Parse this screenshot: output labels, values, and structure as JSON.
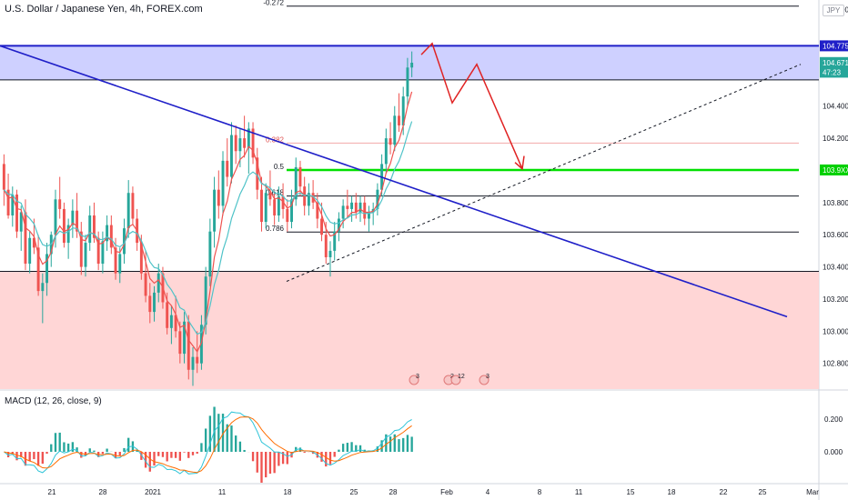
{
  "header": {
    "title": "U.S. Dollar / Japanese Yen, 4h, FOREX.com",
    "currency": "JPY"
  },
  "macd": {
    "title": "MACD (12, 26, close, 9)"
  },
  "colors": {
    "up": "#26a69a",
    "down": "#ef5350",
    "resistance_zone": "#c5c8ff",
    "support_zone": "#ffd2d2",
    "trendline": "#1f1fc8",
    "projection": "#e02222",
    "green_level": "#00e000",
    "fib_line": "#131722",
    "fib_red_line": "#f2a8a8",
    "ma_fast": "#ef5350",
    "ma_slow": "#4fc3c8"
  },
  "chart_data": {
    "type": "candlestick",
    "symbol": "USDJPY",
    "timeframe": "4h",
    "ylim": [
      102.64,
      105.06
    ],
    "y_ticks": [
      "105.000",
      "104.400",
      "104.200",
      "103.800",
      "103.600",
      "103.400",
      "103.200",
      "103.000",
      "102.800"
    ],
    "x_ticks": [
      "21",
      "28",
      "2021",
      "11",
      "18",
      "25",
      "28",
      "Feb",
      "4",
      "8",
      "11",
      "15",
      "18",
      "22",
      "25",
      "Mar"
    ],
    "price_labels": [
      {
        "text": "104.775",
        "value": 104.775
      },
      {
        "text": "104.671",
        "value": 104.671
      },
      {
        "text": "47:23",
        "value": 104.611
      },
      {
        "text": "103.9XX",
        "value": 104.003
      }
    ],
    "zones": [
      {
        "name": "resistance",
        "from": 104.563,
        "to": 104.775
      },
      {
        "name": "support",
        "from": 102.64,
        "to": 103.372
      }
    ],
    "fib_levels": [
      {
        "label": "-0.272",
        "value": 105.022
      },
      {
        "label": "0.382",
        "value": 104.17
      },
      {
        "label": "0.5",
        "value": 104.003
      },
      {
        "label": "0.618",
        "value": 103.841
      },
      {
        "label": "0.786",
        "value": 103.617
      }
    ],
    "macd_ticks": [
      "0.200",
      "0.000"
    ],
    "event_markers": [
      "3",
      "2",
      "12",
      "3"
    ],
    "candles": [
      [
        104.04,
        104.1,
        103.78,
        103.88
      ],
      [
        103.88,
        103.98,
        103.7,
        103.72
      ],
      [
        103.72,
        103.9,
        103.65,
        103.85
      ],
      [
        103.85,
        103.88,
        103.58,
        103.62
      ],
      [
        103.62,
        103.78,
        103.5,
        103.74
      ],
      [
        103.74,
        103.82,
        103.38,
        103.42
      ],
      [
        103.42,
        103.62,
        103.36,
        103.58
      ],
      [
        103.58,
        103.7,
        103.48,
        103.52
      ],
      [
        103.52,
        103.6,
        103.22,
        103.25
      ],
      [
        103.25,
        103.36,
        103.05,
        103.3
      ],
      [
        103.3,
        103.55,
        103.22,
        103.48
      ],
      [
        103.48,
        103.62,
        103.4,
        103.6
      ],
      [
        103.6,
        103.88,
        103.52,
        103.82
      ],
      [
        103.82,
        103.96,
        103.7,
        103.76
      ],
      [
        103.76,
        103.8,
        103.52,
        103.55
      ],
      [
        103.55,
        103.7,
        103.45,
        103.66
      ],
      [
        103.66,
        103.82,
        103.58,
        103.75
      ],
      [
        103.75,
        103.86,
        103.58,
        103.62
      ],
      [
        103.62,
        103.68,
        103.35,
        103.4
      ],
      [
        103.4,
        103.6,
        103.34,
        103.55
      ],
      [
        103.55,
        103.78,
        103.5,
        103.72
      ],
      [
        103.72,
        103.8,
        103.55,
        103.58
      ],
      [
        103.58,
        103.62,
        103.38,
        103.42
      ],
      [
        103.42,
        103.62,
        103.36,
        103.56
      ],
      [
        103.56,
        103.72,
        103.5,
        103.66
      ],
      [
        103.66,
        103.72,
        103.48,
        103.52
      ],
      [
        103.52,
        103.58,
        103.32,
        103.36
      ],
      [
        103.36,
        103.52,
        103.3,
        103.48
      ],
      [
        103.48,
        103.7,
        103.42,
        103.64
      ],
      [
        103.64,
        103.94,
        103.58,
        103.86
      ],
      [
        103.86,
        103.9,
        103.66,
        103.7
      ],
      [
        103.7,
        103.76,
        103.5,
        103.55
      ],
      [
        103.55,
        103.6,
        103.32,
        103.36
      ],
      [
        103.36,
        103.5,
        103.18,
        103.22
      ],
      [
        103.22,
        103.3,
        103.05,
        103.12
      ],
      [
        103.12,
        103.28,
        103.06,
        103.24
      ],
      [
        103.24,
        103.42,
        103.18,
        103.36
      ],
      [
        103.36,
        103.4,
        103.14,
        103.18
      ],
      [
        103.18,
        103.24,
        102.98,
        103.02
      ],
      [
        103.02,
        103.16,
        102.92,
        103.1
      ],
      [
        103.1,
        103.22,
        102.96,
        103.0
      ],
      [
        103.0,
        103.06,
        102.8,
        102.86
      ],
      [
        102.86,
        103.12,
        102.8,
        103.06
      ],
      [
        103.06,
        103.1,
        102.7,
        102.76
      ],
      [
        102.76,
        102.9,
        102.66,
        102.84
      ],
      [
        102.84,
        103.0,
        102.74,
        102.8
      ],
      [
        102.8,
        103.1,
        102.76,
        103.04
      ],
      [
        103.04,
        103.4,
        102.98,
        103.34
      ],
      [
        103.34,
        103.7,
        103.28,
        103.62
      ],
      [
        103.62,
        103.96,
        103.52,
        103.88
      ],
      [
        103.88,
        104.0,
        103.7,
        103.78
      ],
      [
        103.78,
        104.12,
        103.72,
        104.06
      ],
      [
        104.06,
        104.2,
        103.9,
        103.96
      ],
      [
        103.96,
        104.3,
        103.92,
        104.22
      ],
      [
        104.22,
        104.28,
        104.04,
        104.12
      ],
      [
        104.12,
        104.26,
        104.02,
        104.2
      ],
      [
        104.2,
        104.34,
        104.08,
        104.14
      ],
      [
        104.14,
        104.3,
        103.98,
        104.26
      ],
      [
        104.26,
        104.3,
        104.04,
        104.08
      ],
      [
        104.08,
        104.14,
        103.82,
        103.88
      ],
      [
        103.88,
        103.96,
        103.62,
        103.68
      ],
      [
        103.68,
        103.92,
        103.64,
        103.86
      ],
      [
        103.86,
        104.0,
        103.78,
        103.82
      ],
      [
        103.82,
        103.86,
        103.66,
        103.72
      ],
      [
        103.72,
        103.9,
        103.68,
        103.84
      ],
      [
        103.84,
        103.92,
        103.7,
        103.76
      ],
      [
        103.76,
        103.82,
        103.62,
        103.68
      ],
      [
        103.68,
        103.88,
        103.64,
        103.82
      ],
      [
        103.82,
        104.08,
        103.78,
        104.02
      ],
      [
        104.02,
        104.06,
        103.84,
        103.9
      ],
      [
        103.9,
        103.96,
        103.72,
        103.78
      ],
      [
        103.78,
        103.92,
        103.72,
        103.86
      ],
      [
        103.86,
        103.94,
        103.76,
        103.8
      ],
      [
        103.8,
        103.86,
        103.64,
        103.7
      ],
      [
        103.7,
        103.8,
        103.56,
        103.6
      ],
      [
        103.6,
        103.68,
        103.42,
        103.46
      ],
      [
        103.46,
        103.56,
        103.34,
        103.5
      ],
      [
        103.5,
        103.68,
        103.44,
        103.62
      ],
      [
        103.62,
        103.74,
        103.56,
        103.7
      ],
      [
        103.7,
        103.82,
        103.64,
        103.78
      ],
      [
        103.78,
        103.88,
        103.7,
        103.76
      ],
      [
        103.76,
        103.84,
        103.68,
        103.8
      ],
      [
        103.8,
        103.86,
        103.7,
        103.74
      ],
      [
        103.74,
        103.84,
        103.68,
        103.8
      ],
      [
        103.8,
        103.84,
        103.66,
        103.7
      ],
      [
        103.7,
        103.78,
        103.62,
        103.74
      ],
      [
        103.74,
        103.8,
        103.66,
        103.76
      ],
      [
        103.76,
        103.92,
        103.72,
        103.88
      ],
      [
        103.88,
        104.1,
        103.84,
        104.04
      ],
      [
        104.04,
        104.26,
        103.98,
        104.2
      ],
      [
        104.2,
        104.3,
        104.1,
        104.16
      ],
      [
        104.16,
        104.4,
        104.12,
        104.34
      ],
      [
        104.34,
        104.48,
        104.24,
        104.28
      ],
      [
        104.28,
        104.52,
        104.22,
        104.46
      ],
      [
        104.46,
        104.7,
        104.4,
        104.64
      ],
      [
        104.64,
        104.74,
        104.58,
        104.67
      ]
    ]
  }
}
